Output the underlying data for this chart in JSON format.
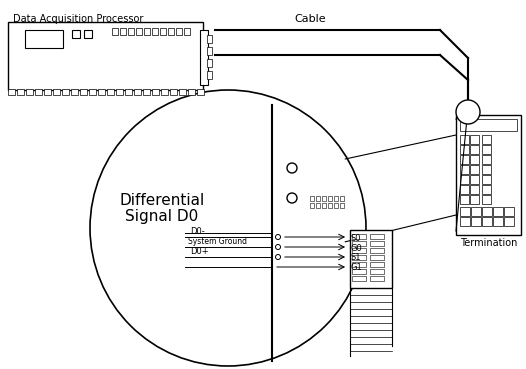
{
  "bg_color": "#ffffff",
  "lc": "#000000",
  "dap_label": "Data Acquisition Processor",
  "cable_label": "Cable",
  "termination_label": "Termination",
  "diff_line1": "Differential",
  "diff_line2": "Signal D0",
  "sig_labels": [
    "D0-",
    "System Ground",
    "D0+"
  ],
  "conn_labels": [
    "S0",
    "G0",
    "S1",
    "G1"
  ],
  "fs": 7,
  "fs_large": 11,
  "fs_small": 6
}
